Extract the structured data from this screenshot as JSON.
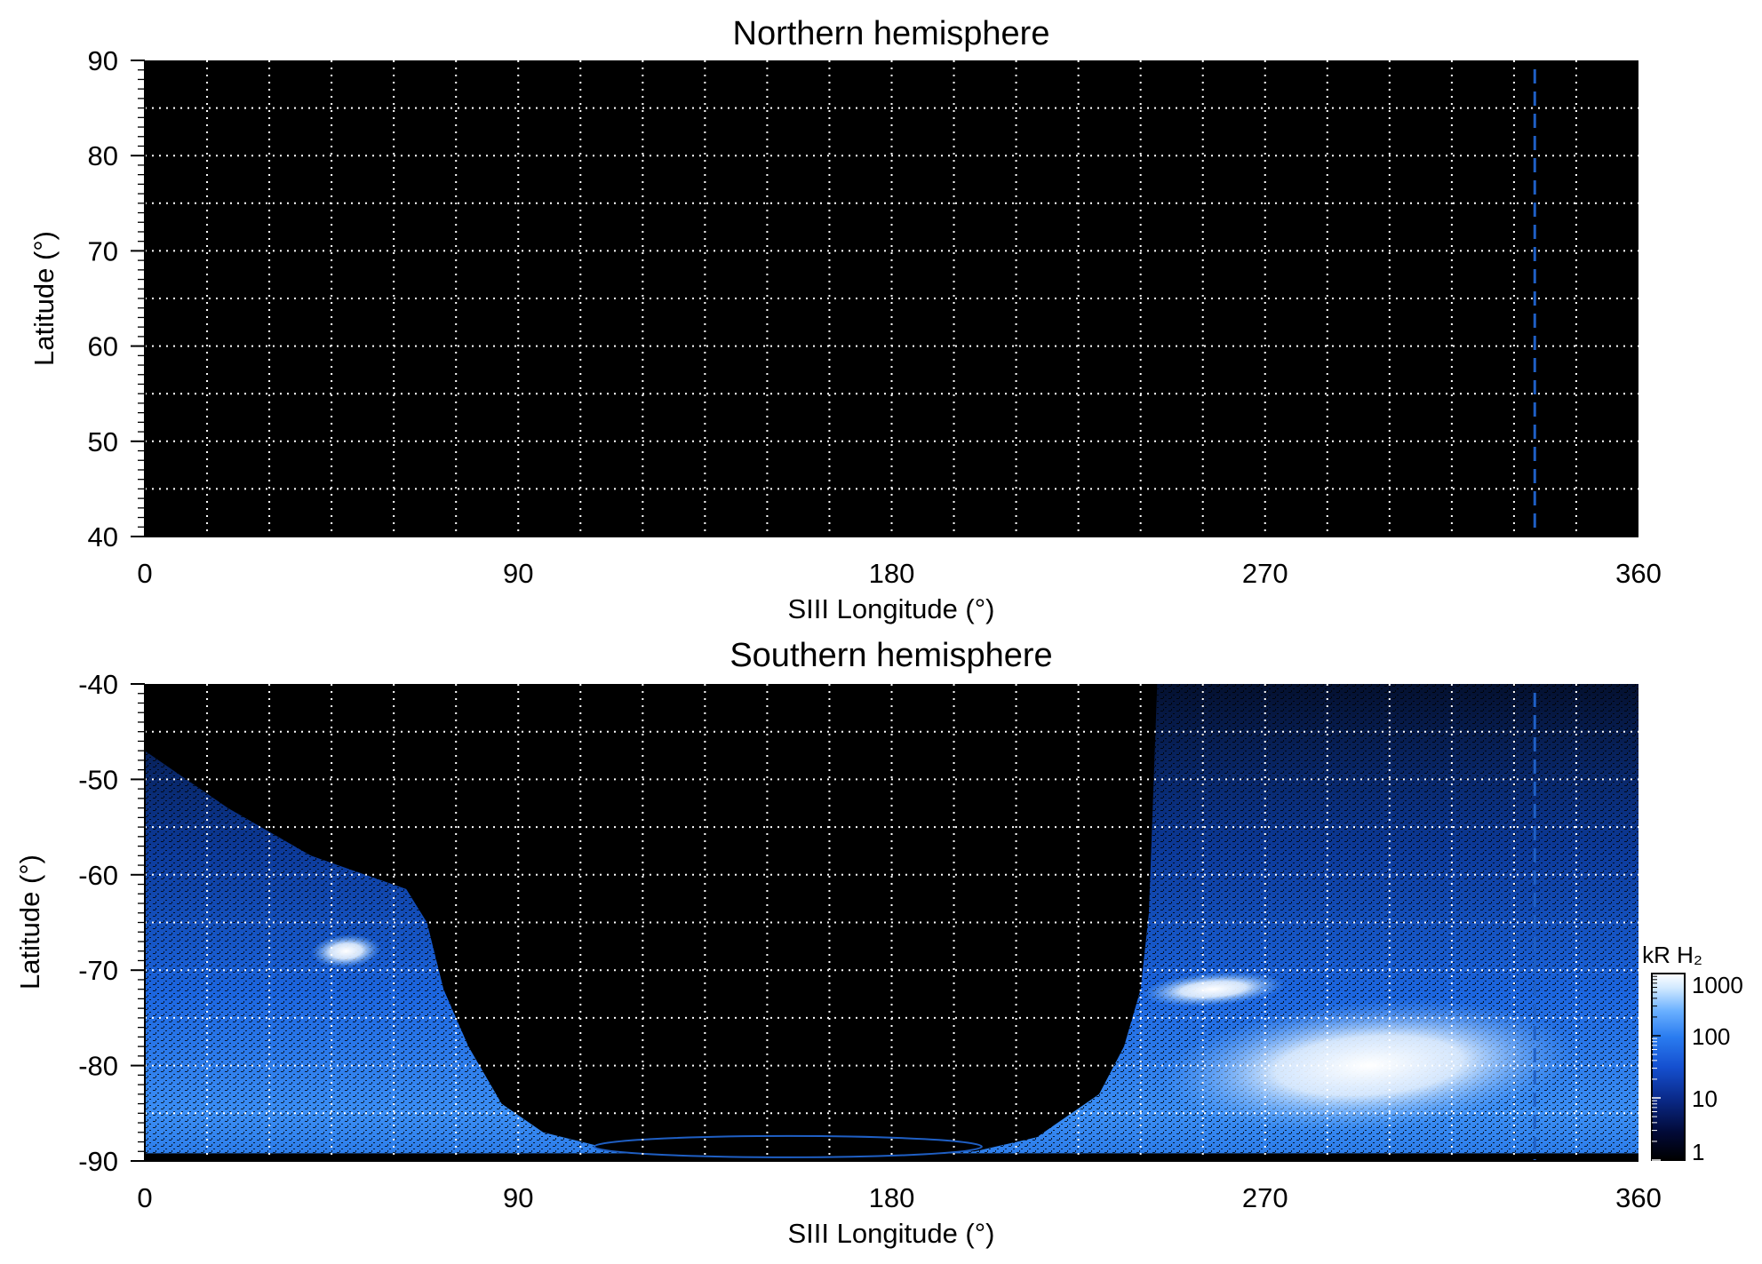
{
  "figure": {
    "colors": {
      "background": "#000000",
      "grid": "#ffffff",
      "marker_line": "#1f5fc4",
      "colormap": [
        "#000000",
        "#020a38",
        "#0a2a8a",
        "#1550d0",
        "#2a7cf0",
        "#6ab0ff",
        "#cfe8ff",
        "#ffffff"
      ]
    },
    "colorbar": {
      "label": "kR H₂",
      "ticks": [
        "1",
        "10",
        "100",
        "1000"
      ]
    }
  },
  "chart_data": [
    {
      "type": "heatmap",
      "title": "Northern hemisphere",
      "xlabel": "SIII Longitude (°)",
      "ylabel": "Latitude (°)",
      "xlim": [
        0,
        360
      ],
      "ylim": [
        40,
        90
      ],
      "xticks": [
        "0",
        "90",
        "180",
        "270",
        "360"
      ],
      "yticks": [
        "40",
        "50",
        "60",
        "70",
        "80",
        "90"
      ],
      "grid": true,
      "grid_dx": 15,
      "grid_dy": 5,
      "marker_longitude": 335,
      "emission": "none detected (uniformly black, ~0 kR)"
    },
    {
      "type": "heatmap",
      "title": "Southern hemisphere",
      "xlabel": "SIII Longitude (°)",
      "ylabel": "Latitude (°)",
      "xlim": [
        0,
        360
      ],
      "ylim": [
        -90,
        -40
      ],
      "xticks": [
        "0",
        "90",
        "180",
        "270",
        "360"
      ],
      "yticks": [
        "-90",
        "-80",
        "-70",
        "-60",
        "-50",
        "-40"
      ],
      "grid": true,
      "grid_dx": 15,
      "grid_dy": 5,
      "marker_longitude": 335,
      "color_scale": "log",
      "color_range_kR": [
        1,
        1000
      ],
      "no_data_boundary": [
        [
          0,
          -47
        ],
        [
          20,
          -53
        ],
        [
          40,
          -58
        ],
        [
          63,
          -61.5
        ],
        [
          68,
          -65
        ],
        [
          72,
          -72
        ],
        [
          78,
          -78
        ],
        [
          86,
          -84
        ],
        [
          96,
          -87
        ],
        [
          110,
          -88.5
        ],
        [
          120,
          -89
        ],
        [
          200,
          -89
        ],
        [
          215,
          -87.5
        ],
        [
          230,
          -83
        ],
        [
          236,
          -78
        ],
        [
          240,
          -72
        ],
        [
          242,
          -64
        ],
        [
          243,
          -52
        ],
        [
          244,
          -40
        ]
      ],
      "brightest_regions": [
        {
          "lon": [
            40,
            57
          ],
          "lat": [
            -69,
            -67
          ],
          "level_kR": 1000
        },
        {
          "lon": [
            240,
            275
          ],
          "lat": [
            -73,
            -71
          ],
          "level_kR": 1000
        },
        {
          "lon": [
            245,
            345
          ],
          "lat": [
            -86,
            -74
          ],
          "level_kR": 1000
        }
      ]
    }
  ]
}
